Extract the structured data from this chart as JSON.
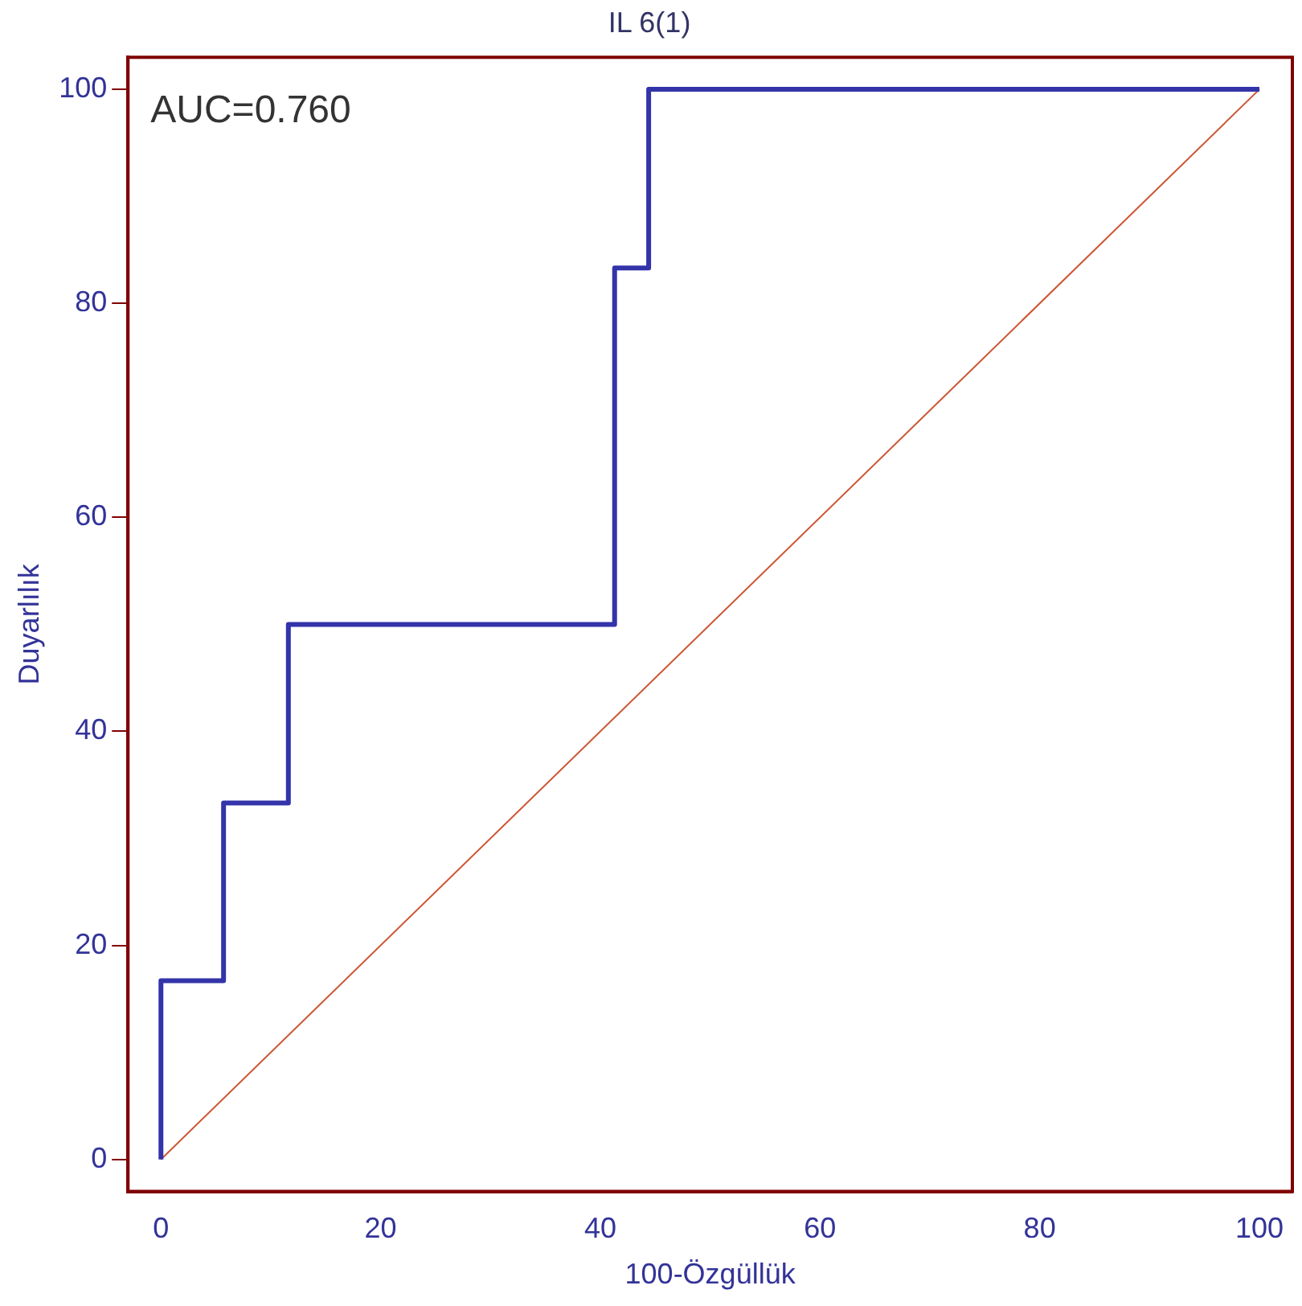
{
  "chart_data": {
    "type": "line",
    "title": "IL 6(1)",
    "xlabel": "100-Özgüllük",
    "ylabel": "Duyarlılık",
    "annotations": [
      "AUC=0.760"
    ],
    "series": [
      {
        "color": "#3333aa",
        "x": [
          0,
          0,
          5.7,
          5.7,
          11.6,
          11.6,
          41.3,
          41.3,
          44.4,
          44.4,
          100
        ],
        "values": [
          0,
          16.7,
          16.7,
          33.3,
          33.3,
          50,
          50,
          83.3,
          83.3,
          100,
          100
        ]
      },
      {
        "color": "#cc5533",
        "x": [
          0,
          100
        ],
        "values": [
          0,
          100
        ]
      }
    ],
    "xlim": [
      -3,
      103
    ],
    "ylim": [
      -3,
      103
    ],
    "xticks": [
      0,
      20,
      40,
      60,
      80,
      100
    ],
    "yticks": [
      0,
      20,
      40,
      60,
      80,
      100
    ],
    "grid": false,
    "legend": false,
    "marker": "none",
    "line_style": "solid"
  }
}
